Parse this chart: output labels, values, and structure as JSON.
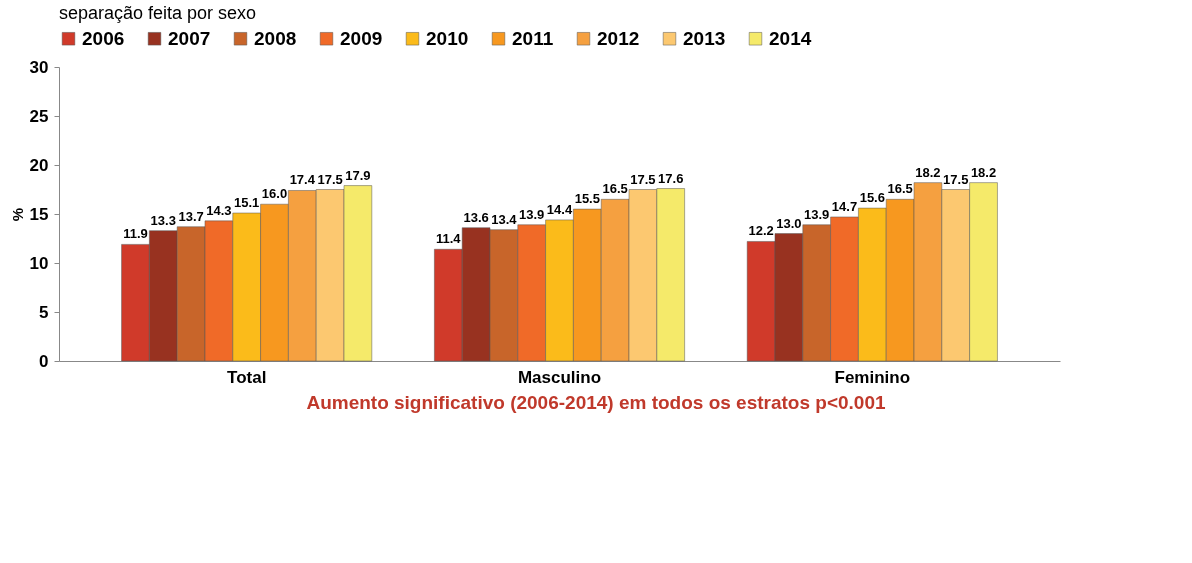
{
  "chart_data": {
    "type": "bar",
    "title": "separação feita por sexo",
    "ylabel": "%",
    "categories": [
      "Total",
      "Masculino",
      "Feminino"
    ],
    "series": [
      {
        "name": "2006",
        "color": "#d03a2a",
        "values": [
          11.9,
          11.4,
          12.2
        ],
        "value_labels": [
          "11.9",
          "11.4",
          "12.2"
        ]
      },
      {
        "name": "2007",
        "color": "#983220",
        "values": [
          13.3,
          13.6,
          13.0
        ],
        "value_labels": [
          "13.3",
          "13.6",
          "13.0"
        ]
      },
      {
        "name": "2008",
        "color": "#c8652a",
        "values": [
          13.7,
          13.4,
          13.9
        ],
        "value_labels": [
          "13.7",
          "13.4",
          "13.9"
        ]
      },
      {
        "name": "2009",
        "color": "#f06a28",
        "values": [
          14.3,
          13.9,
          14.7
        ],
        "value_labels": [
          "14.3",
          "13.9",
          "14.7"
        ]
      },
      {
        "name": "2010",
        "color": "#fbbb1a",
        "values": [
          15.1,
          14.4,
          15.6
        ],
        "value_labels": [
          "15.1",
          "14.4",
          "15.6"
        ]
      },
      {
        "name": "2011",
        "color": "#f7981f",
        "values": [
          16.0,
          15.5,
          16.5
        ],
        "value_labels": [
          "16.0",
          "15.5",
          "16.5"
        ]
      },
      {
        "name": "2012",
        "color": "#f5a040",
        "values": [
          17.4,
          16.5,
          18.2
        ],
        "value_labels": [
          "17.4",
          "16.5",
          "18.2"
        ]
      },
      {
        "name": "2013",
        "color": "#fcc870",
        "values": [
          17.5,
          17.5,
          17.5
        ],
        "value_labels": [
          "17.5",
          "17.5",
          "17.5"
        ]
      },
      {
        "name": "2014",
        "color": "#f5ea6a",
        "values": [
          17.9,
          17.6,
          18.2
        ],
        "value_labels": [
          "17.9",
          "17.6",
          "18.2"
        ]
      }
    ],
    "ylim": [
      0,
      30
    ],
    "yticks": [
      0,
      5,
      10,
      15,
      20,
      25,
      30
    ],
    "grid": false,
    "legend": "top",
    "annotations": [
      "Aumento significativo (2006-2014) em todos os estratos  p<0.001"
    ]
  }
}
